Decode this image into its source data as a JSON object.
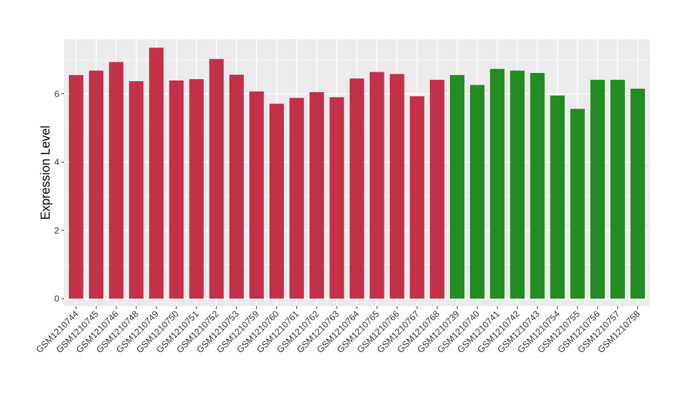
{
  "chart_data": {
    "type": "bar",
    "title": "",
    "xlabel": "",
    "ylabel": "Expression Level",
    "ylim": [
      -0.22,
      7.6
    ],
    "yticks": [
      0,
      2,
      4,
      6
    ],
    "grid": true,
    "categories": [
      "GSM1210744",
      "GSM1210745",
      "GSM1210746",
      "GSM1210748",
      "GSM1210749",
      "GSM1210750",
      "GSM1210751",
      "GSM1210752",
      "GSM1210753",
      "GSM1210759",
      "GSM1210760",
      "GSM1210761",
      "GSM1210762",
      "GSM1210763",
      "GSM1210764",
      "GSM1210765",
      "GSM1210766",
      "GSM1210767",
      "GSM1210768",
      "GSM1210739",
      "GSM1210740",
      "GSM1210741",
      "GSM1210742",
      "GSM1210743",
      "GSM1210754",
      "GSM1210755",
      "GSM1210756",
      "GSM1210757",
      "GSM1210758"
    ],
    "values": [
      6.55,
      6.68,
      6.93,
      6.37,
      7.35,
      6.39,
      6.43,
      7.02,
      6.56,
      6.07,
      5.71,
      5.88,
      6.05,
      5.9,
      6.45,
      6.64,
      6.58,
      5.93,
      6.41,
      6.55,
      6.26,
      6.73,
      6.68,
      6.61,
      5.95,
      5.56,
      6.41,
      6.41,
      6.15
    ],
    "bar_colors": [
      "#c2304a",
      "#c2304a",
      "#c2304a",
      "#c2304a",
      "#c2304a",
      "#c2304a",
      "#c2304a",
      "#c2304a",
      "#c2304a",
      "#c2304a",
      "#c2304a",
      "#c2304a",
      "#c2304a",
      "#c2304a",
      "#c2304a",
      "#c2304a",
      "#c2304a",
      "#c2304a",
      "#c2304a",
      "#228b22",
      "#228b22",
      "#228b22",
      "#228b22",
      "#228b22",
      "#228b22",
      "#228b22",
      "#228b22",
      "#228b22",
      "#228b22"
    ],
    "panel_background": "#ebebeb",
    "grid_color": "#ffffff"
  }
}
